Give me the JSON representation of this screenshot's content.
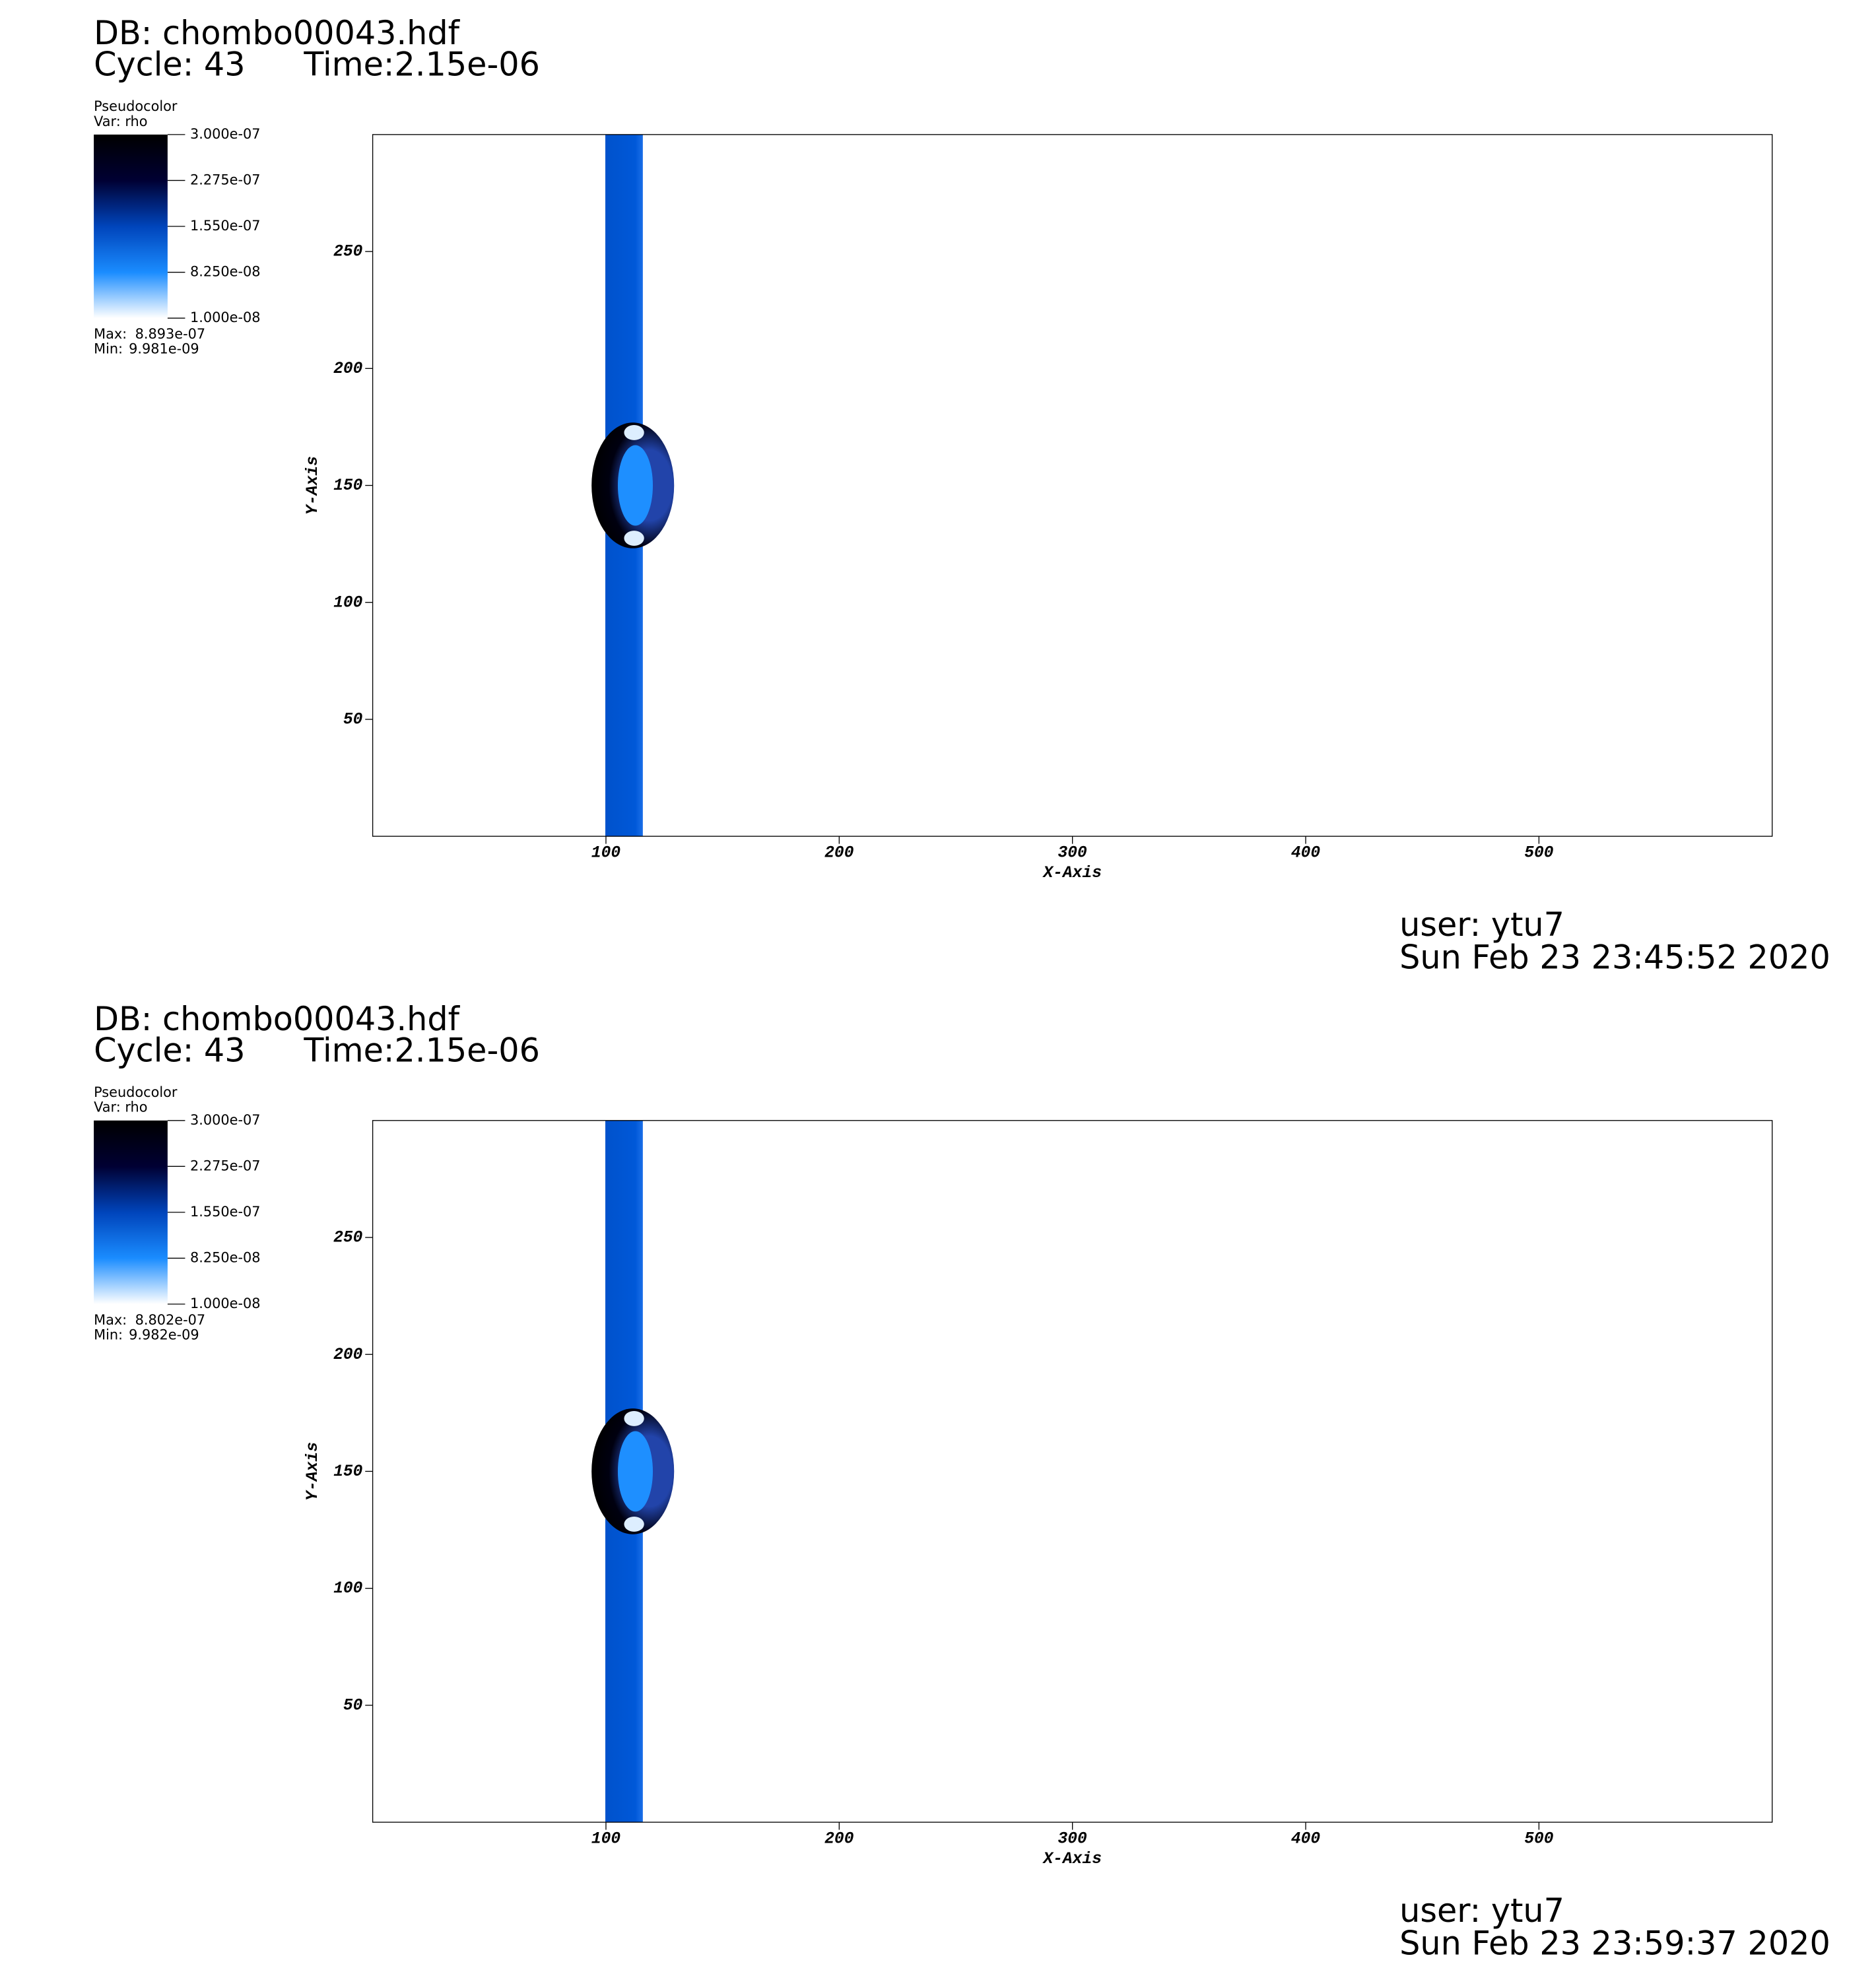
{
  "chart_data": [
    {
      "type": "pseudocolor",
      "db": "DB: chombo00043.hdf",
      "cycle": "Cycle: 43",
      "time": "Time:2.15e-06",
      "legend_title": "Pseudocolor",
      "legend_var": "Var: rho",
      "colorbar_ticks": [
        {
          "value": 3e-07,
          "label": "3.000e-07"
        },
        {
          "value": 2.275e-07,
          "label": "2.275e-07"
        },
        {
          "value": 1.55e-07,
          "label": "1.550e-07"
        },
        {
          "value": 8.25e-08,
          "label": "8.250e-08"
        },
        {
          "value": 1e-08,
          "label": "1.000e-08"
        }
      ],
      "colorbar_lim": [
        1e-08,
        3e-07
      ],
      "max_label": "Max:",
      "max": {
        "value": 8.893e-07,
        "label": "8.893e-07"
      },
      "min_label": "Min:",
      "min": {
        "value": 9.981e-09,
        "label": "9.981e-09"
      },
      "x_label": "X-Axis",
      "y_label": "Y-Axis",
      "xlim": [
        0,
        600
      ],
      "ylim": [
        0,
        300
      ],
      "xticks": [
        100,
        200,
        300,
        400,
        500
      ],
      "yticks": [
        50,
        100,
        150,
        200,
        250
      ],
      "user": "user: ytu7",
      "date": "Sun Feb 23 23:45:52 2020"
    },
    {
      "type": "pseudocolor",
      "db": "DB: chombo00043.hdf",
      "cycle": "Cycle: 43",
      "time": "Time:2.15e-06",
      "legend_title": "Pseudocolor",
      "legend_var": "Var: rho",
      "colorbar_ticks": [
        {
          "value": 3e-07,
          "label": "3.000e-07"
        },
        {
          "value": 2.275e-07,
          "label": "2.275e-07"
        },
        {
          "value": 1.55e-07,
          "label": "1.550e-07"
        },
        {
          "value": 8.25e-08,
          "label": "8.250e-08"
        },
        {
          "value": 1e-08,
          "label": "1.000e-08"
        }
      ],
      "colorbar_lim": [
        1e-08,
        3e-07
      ],
      "max_label": "Max:",
      "max": {
        "value": 8.802e-07,
        "label": "8.802e-07"
      },
      "min_label": "Min:",
      "min": {
        "value": 9.982e-09,
        "label": "9.982e-09"
      },
      "x_label": "X-Axis",
      "y_label": "Y-Axis",
      "xlim": [
        0,
        600
      ],
      "ylim": [
        0,
        300
      ],
      "xticks": [
        100,
        200,
        300,
        400,
        500
      ],
      "yticks": [
        50,
        100,
        150,
        200,
        250
      ],
      "user": "user: ytu7",
      "date": "Sun Feb 23 23:59:37 2020"
    }
  ]
}
